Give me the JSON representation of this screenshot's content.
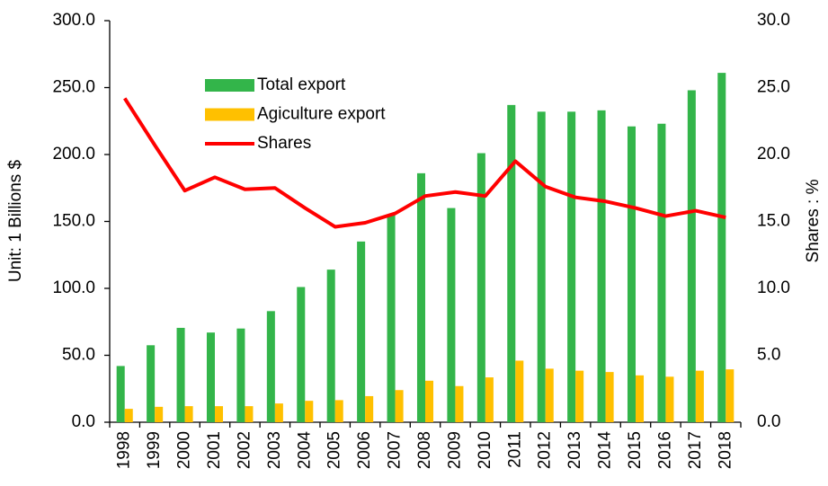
{
  "chart_data": {
    "type": "bar_line",
    "categories": [
      "1998",
      "1999",
      "2000",
      "2001",
      "2002",
      "2003",
      "2004",
      "2005",
      "2006",
      "2007",
      "2008",
      "2009",
      "2010",
      "2011",
      "2012",
      "2013",
      "2014",
      "2015",
      "2016",
      "2017",
      "2018"
    ],
    "series": [
      {
        "name": "Total export",
        "type": "bar",
        "color": "#33b54a",
        "values": [
          42,
          57.5,
          70.5,
          67,
          70,
          83,
          101,
          114,
          135,
          155,
          186,
          160,
          201,
          237,
          232,
          232,
          233,
          221,
          223,
          248,
          261
        ]
      },
      {
        "name": "Agiculture export",
        "type": "bar",
        "color": "#ffc000",
        "values": [
          10,
          11.5,
          12,
          12,
          12,
          14,
          16,
          16.5,
          19.5,
          24,
          31,
          27,
          33.5,
          46,
          40,
          38.5,
          37.5,
          35,
          34,
          38.5,
          39.5
        ]
      },
      {
        "name": "Shares",
        "type": "line",
        "axis": "y2",
        "color": "#ff0000",
        "values": [
          24.2,
          20.7,
          17.3,
          18.3,
          17.4,
          17.5,
          16.0,
          14.6,
          14.9,
          15.6,
          16.9,
          17.2,
          16.9,
          19.5,
          17.6,
          16.8,
          16.5,
          16.0,
          15.4,
          15.8,
          15.3
        ]
      }
    ],
    "y_label": "Unit: 1 Billions $",
    "y2_label": "Shares : %",
    "ylim": [
      0,
      300
    ],
    "yticks": [
      {
        "value": 0,
        "label": "0.0"
      },
      {
        "value": 50,
        "label": "50.0"
      },
      {
        "value": 100,
        "label": "100.0"
      },
      {
        "value": 150,
        "label": "150.0"
      },
      {
        "value": 200,
        "label": "200.0"
      },
      {
        "value": 250,
        "label": "250.0"
      },
      {
        "value": 300,
        "label": "300.0"
      }
    ],
    "y2lim": [
      0,
      30
    ],
    "y2ticks": [
      {
        "value": 0,
        "label": "0.0"
      },
      {
        "value": 5,
        "label": "5.0"
      },
      {
        "value": 10,
        "label": "10.0"
      },
      {
        "value": 15,
        "label": "15.0"
      },
      {
        "value": 20,
        "label": "20.0"
      },
      {
        "value": 25,
        "label": "25.0"
      },
      {
        "value": 30,
        "label": "30.0"
      }
    ],
    "grid": false,
    "legend": "upper-left"
  }
}
